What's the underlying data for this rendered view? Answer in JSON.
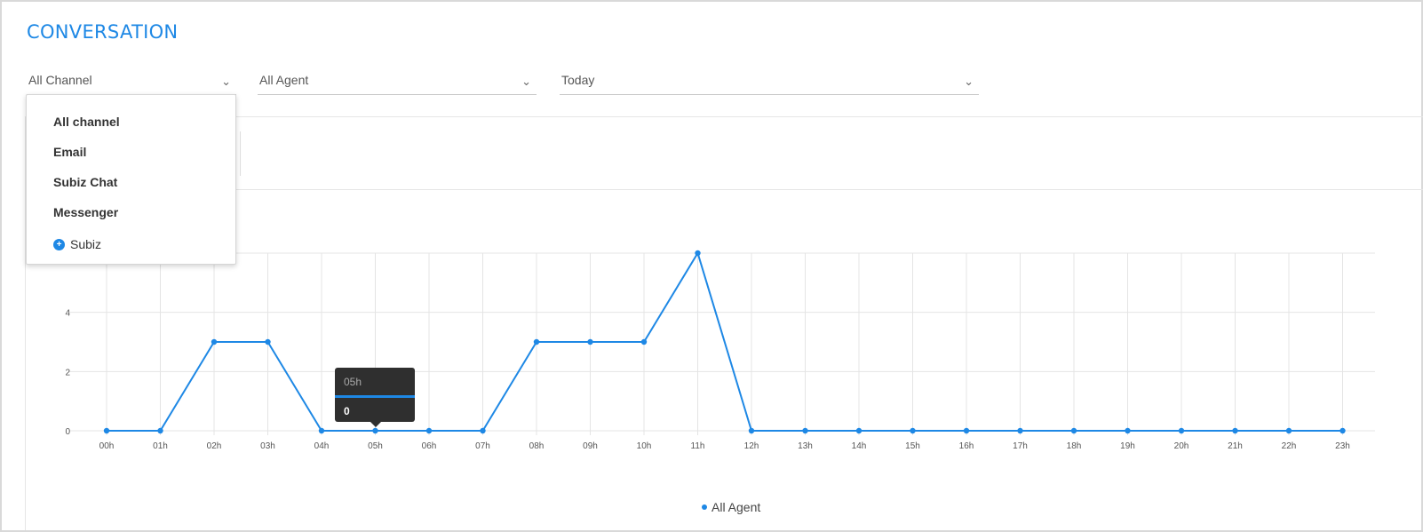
{
  "page": {
    "title": "CONVERSATION"
  },
  "filters": {
    "channel": "All Channel",
    "agent": "All Agent",
    "date": "Today"
  },
  "channel_menu": {
    "items": [
      "All channel",
      "Email",
      "Subiz Chat",
      "Messenger"
    ],
    "subiz_label": "Subiz"
  },
  "tooltip": {
    "label": "05h",
    "value": "0"
  },
  "colors": {
    "accent": "#1e88e5",
    "tooltip_bg": "#2f2f2f"
  },
  "chart_data": {
    "type": "line",
    "categories": [
      "00h",
      "01h",
      "02h",
      "03h",
      "04h",
      "05h",
      "06h",
      "07h",
      "08h",
      "09h",
      "10h",
      "11h",
      "12h",
      "13h",
      "14h",
      "15h",
      "16h",
      "17h",
      "18h",
      "19h",
      "20h",
      "21h",
      "22h",
      "23h"
    ],
    "series": [
      {
        "name": "All Agent",
        "values": [
          0,
          0,
          3,
          3,
          0,
          0,
          0,
          0,
          3,
          3,
          3,
          6,
          0,
          0,
          0,
          0,
          0,
          0,
          0,
          0,
          0,
          0,
          0,
          0
        ]
      }
    ],
    "yticks": [
      0,
      2,
      4
    ],
    "ylim": [
      0,
      6
    ],
    "grid": true,
    "legend": "bottom-center"
  }
}
